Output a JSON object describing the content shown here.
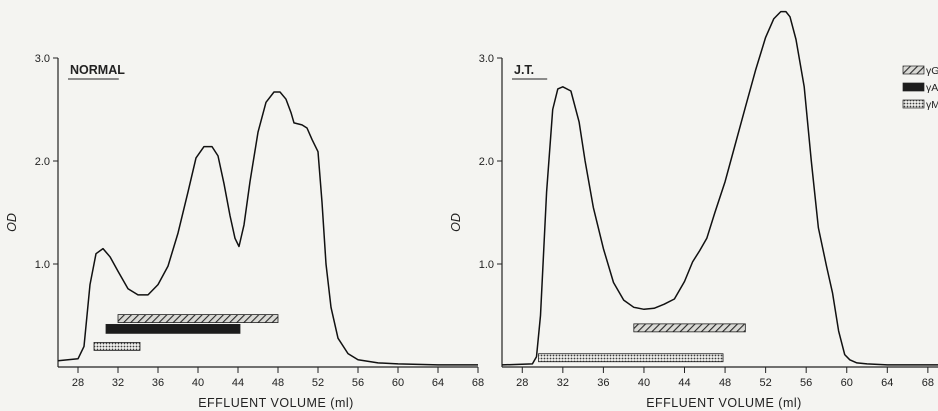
{
  "figure": {
    "x_axis_label": "EFFLUENT VOLUME (ml)",
    "y_axis_label": "OD",
    "legend": [
      "γG",
      "γA",
      "γM"
    ]
  },
  "chart_data": [
    {
      "type": "line",
      "title": "NORMAL",
      "xlabel": "EFFLUENT VOLUME (ml)",
      "ylabel": "OD",
      "xlim": [
        26,
        68
      ],
      "ylim": [
        0,
        3.0
      ],
      "x_ticks": [
        "28",
        "32",
        "36",
        "40",
        "44",
        "48",
        "52",
        "56",
        "60",
        "64",
        "68"
      ],
      "y_ticks": [
        "1.0",
        "2.0",
        "3.0"
      ],
      "grid": false,
      "series": [
        {
          "x": [
            26,
            28,
            28.6,
            29.2,
            29.8,
            30.5,
            31.2,
            32,
            33,
            34,
            35,
            36,
            37,
            38,
            39,
            39.8,
            40.6,
            41.4,
            42,
            42.6,
            43.2,
            43.7,
            44.1,
            44.6,
            45.2,
            46,
            46.8,
            47.6,
            48.2,
            48.8,
            49.3,
            49.6,
            50.4,
            50.9,
            51.4,
            52,
            52.4,
            52.8,
            53.3,
            54,
            55,
            56,
            58,
            60,
            64,
            68
          ],
          "values": [
            0.06,
            0.08,
            0.2,
            0.8,
            1.1,
            1.15,
            1.07,
            0.93,
            0.76,
            0.7,
            0.7,
            0.8,
            0.98,
            1.3,
            1.7,
            2.03,
            2.14,
            2.14,
            2.05,
            1.78,
            1.47,
            1.25,
            1.17,
            1.38,
            1.8,
            2.28,
            2.57,
            2.67,
            2.67,
            2.6,
            2.47,
            2.37,
            2.35,
            2.32,
            2.21,
            2.09,
            1.6,
            1.0,
            0.58,
            0.28,
            0.13,
            0.07,
            0.04,
            0.03,
            0.02,
            0.02
          ]
        }
      ],
      "bars": [
        {
          "name": "γG",
          "x_start": 32,
          "x_end": 48,
          "level": 0.47,
          "pattern": "hatched"
        },
        {
          "name": "γA",
          "x_start": 30.8,
          "x_end": 44.2,
          "level": 0.37,
          "pattern": "solid"
        },
        {
          "name": "γM",
          "x_start": 29.6,
          "x_end": 34.2,
          "level": 0.2,
          "pattern": "dotted"
        }
      ]
    },
    {
      "type": "line",
      "title": "J.T.",
      "xlabel": "EFFLUENT VOLUME (ml)",
      "ylabel": "OD",
      "xlim": [
        26,
        69
      ],
      "ylim": [
        0,
        3.0
      ],
      "x_ticks": [
        "28",
        "32",
        "36",
        "40",
        "44",
        "48",
        "52",
        "56",
        "60",
        "64",
        "68"
      ],
      "y_ticks": [
        "1.0",
        "2.0",
        "3.0"
      ],
      "grid": false,
      "legend": {
        "placement": "top-right",
        "entries": [
          "γG",
          "γA",
          "γM"
        ]
      },
      "series": [
        {
          "x": [
            26,
            29,
            29.4,
            29.8,
            30.4,
            31,
            31.5,
            32,
            32.8,
            33.6,
            34.2,
            35,
            36,
            37,
            38,
            39,
            40,
            41,
            42,
            43,
            44,
            44.8,
            45.5,
            46.2,
            47,
            48,
            49,
            50,
            51,
            52,
            52.8,
            53.5,
            54,
            54.4,
            55,
            55.8,
            56.5,
            57.2,
            58,
            58.6,
            59.2,
            59.8,
            60.3,
            61,
            62,
            64,
            68,
            69
          ],
          "values": [
            0.02,
            0.03,
            0.1,
            0.5,
            1.7,
            2.5,
            2.7,
            2.72,
            2.68,
            2.38,
            2.0,
            1.55,
            1.15,
            0.82,
            0.65,
            0.58,
            0.56,
            0.57,
            0.61,
            0.66,
            0.83,
            1.02,
            1.13,
            1.25,
            1.5,
            1.8,
            2.16,
            2.52,
            2.88,
            3.2,
            3.38,
            3.45,
            3.45,
            3.4,
            3.18,
            2.72,
            2.0,
            1.35,
            0.98,
            0.72,
            0.35,
            0.12,
            0.07,
            0.04,
            0.03,
            0.02,
            0.02,
            0.02
          ]
        }
      ],
      "bars": [
        {
          "name": "γG",
          "x_start": 39,
          "x_end": 50,
          "level": 0.38,
          "pattern": "hatched"
        },
        {
          "name": "γM",
          "x_start": 29.6,
          "x_end": 47.8,
          "level": 0.09,
          "pattern": "dotted"
        }
      ]
    }
  ]
}
